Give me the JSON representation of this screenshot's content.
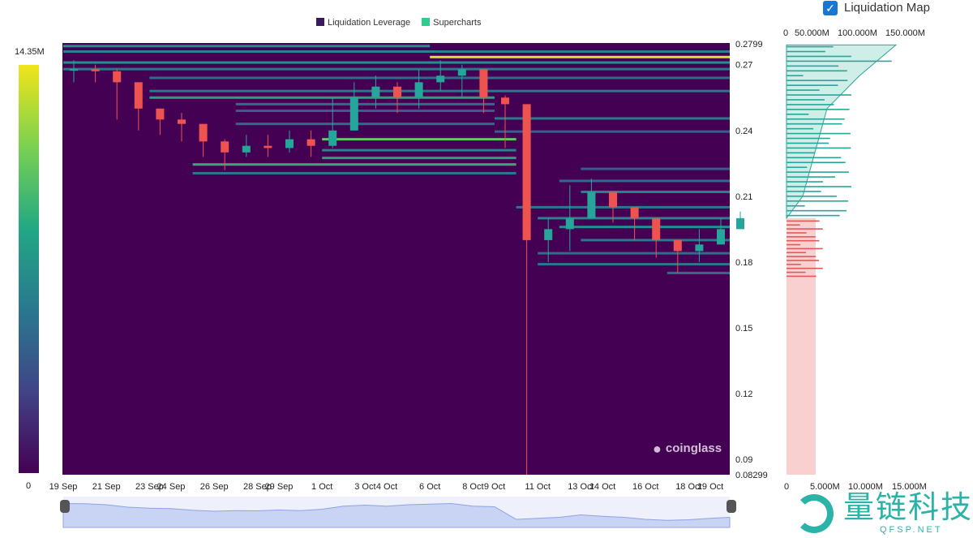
{
  "legend": {
    "items": [
      {
        "label": "Liquidation Leverage",
        "color": "#3b1a5c"
      },
      {
        "label": "Supercharts",
        "color": "#2ecc8f"
      }
    ]
  },
  "toggle": {
    "label": "Liquidation Map",
    "checked": true
  },
  "colorbar": {
    "max_label": "14.35M",
    "min_label": "0"
  },
  "watermark": {
    "text": "coinglass"
  },
  "logo": {
    "text": "量链科技",
    "sub": "QFSP.NET"
  },
  "colors": {
    "background": "#3b0f5e",
    "long": "#e05a5a",
    "short": "#26a69a"
  },
  "chart_data": {
    "type": "heatmap",
    "ylim": [
      0.08299,
      0.2799
    ],
    "yticks": [
      "0.2799",
      "0.27",
      "0.24",
      "0.21",
      "0.18",
      "0.15",
      "0.12",
      "0.09",
      "0.08299"
    ],
    "ytick_values": [
      0.2799,
      0.27,
      0.24,
      0.21,
      0.18,
      0.15,
      0.12,
      0.09,
      0.08299
    ],
    "xticks": [
      "19 Sep",
      "21 Sep",
      "23 Sep",
      "24 Sep",
      "26 Sep",
      "28 Sep",
      "29 Sep",
      "1 Oct",
      "3 Oct",
      "4 Oct",
      "6 Oct",
      "8 Oct",
      "9 Oct",
      "11 Oct",
      "13 Oct",
      "14 Oct",
      "16 Oct",
      "18 Oct",
      "19 Oct"
    ],
    "xtick_days": [
      0,
      2,
      4,
      5,
      7,
      9,
      10,
      12,
      14,
      15,
      17,
      19,
      20,
      22,
      24,
      25,
      27,
      29,
      30
    ],
    "price_close": [
      0.268,
      0.267,
      0.262,
      0.25,
      0.245,
      0.243,
      0.235,
      0.23,
      0.233,
      0.232,
      0.236,
      0.233,
      0.24,
      0.255,
      0.26,
      0.255,
      0.262,
      0.265,
      0.268,
      0.255,
      0.252,
      0.19,
      0.195,
      0.2,
      0.212,
      0.205,
      0.2,
      0.19,
      0.185,
      0.188,
      0.195,
      0.2
    ],
    "price_low": [
      0.262,
      0.262,
      0.245,
      0.24,
      0.238,
      0.235,
      0.228,
      0.222,
      0.228,
      0.228,
      0.23,
      0.228,
      0.232,
      0.24,
      0.25,
      0.248,
      0.25,
      0.258,
      0.255,
      0.248,
      0.232,
      0.08299,
      0.18,
      0.185,
      0.2,
      0.198,
      0.19,
      0.182,
      0.175,
      0.18,
      0.188,
      0.195
    ],
    "price_high": [
      0.272,
      0.27,
      0.268,
      0.255,
      0.25,
      0.248,
      0.24,
      0.236,
      0.238,
      0.238,
      0.24,
      0.24,
      0.255,
      0.262,
      0.265,
      0.262,
      0.268,
      0.272,
      0.27,
      0.265,
      0.256,
      0.245,
      0.2,
      0.215,
      0.218,
      0.212,
      0.205,
      0.198,
      0.19,
      0.195,
      0.2,
      0.203
    ],
    "bands": [
      [
        0.2785,
        0,
        17,
        0.5
      ],
      [
        0.276,
        0,
        32,
        0.45
      ],
      [
        0.2735,
        17,
        32,
        0.95
      ],
      [
        0.271,
        0,
        32,
        0.5
      ],
      [
        0.268,
        0,
        32,
        0.4
      ],
      [
        0.264,
        4,
        32,
        0.35
      ],
      [
        0.258,
        4,
        32,
        0.4
      ],
      [
        0.255,
        4,
        20,
        0.55
      ],
      [
        0.252,
        8,
        20,
        0.35
      ],
      [
        0.249,
        8,
        20,
        0.3
      ],
      [
        0.2455,
        20,
        32,
        0.4
      ],
      [
        0.243,
        8,
        20,
        0.35
      ],
      [
        0.2395,
        20,
        32,
        0.3
      ],
      [
        0.236,
        12,
        21,
        0.75
      ],
      [
        0.231,
        12,
        21,
        0.45
      ],
      [
        0.2275,
        12,
        21,
        0.55
      ],
      [
        0.2245,
        6,
        21,
        0.6
      ],
      [
        0.2205,
        6,
        21,
        0.4
      ],
      [
        0.2225,
        24,
        32,
        0.3
      ],
      [
        0.217,
        23,
        32,
        0.35
      ],
      [
        0.212,
        24,
        32,
        0.45
      ],
      [
        0.205,
        21,
        32,
        0.4
      ],
      [
        0.2,
        22,
        32,
        0.45
      ],
      [
        0.196,
        23,
        32,
        0.5
      ],
      [
        0.19,
        24,
        32,
        0.4
      ],
      [
        0.184,
        22,
        32,
        0.35
      ],
      [
        0.179,
        22,
        32,
        0.4
      ],
      [
        0.175,
        28,
        32,
        0.35
      ]
    ],
    "map_top_axis": [
      "0",
      "50.000M",
      "100.000M",
      "150.000M"
    ],
    "map_bottom_axis": [
      "0",
      "5.000M",
      "10.000M",
      "15.000M"
    ]
  }
}
